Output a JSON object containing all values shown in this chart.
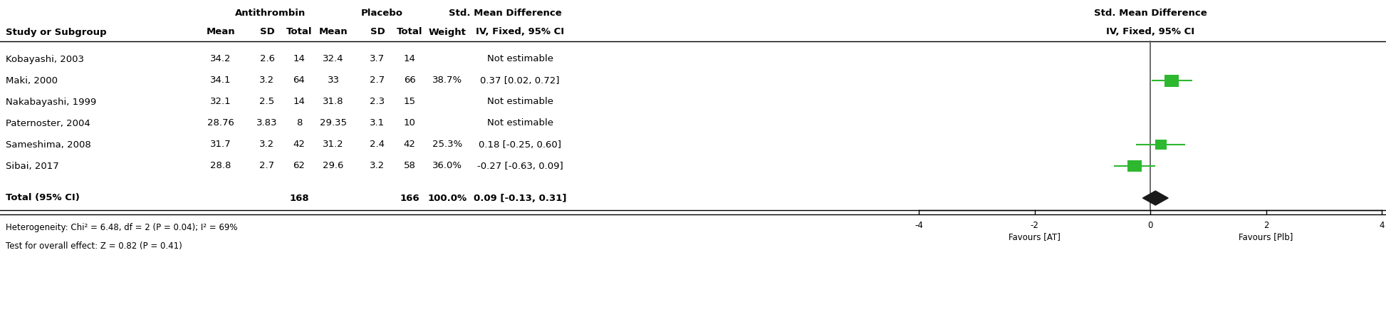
{
  "studies": [
    {
      "name": "Kobayashi, 2003",
      "mean1": "34.2",
      "sd1": "2.6",
      "n1": "14",
      "mean2": "32.4",
      "sd2": "3.7",
      "n2": "14",
      "weight": "",
      "ci_text": "Not estimable",
      "est": null,
      "ci_lo": null,
      "ci_hi": null
    },
    {
      "name": "Maki, 2000",
      "mean1": "34.1",
      "sd1": "3.2",
      "n1": "64",
      "mean2": "33",
      "sd2": "2.7",
      "n2": "66",
      "weight": "38.7%",
      "ci_text": "0.37 [0.02, 0.72]",
      "est": 0.37,
      "ci_lo": 0.02,
      "ci_hi": 0.72
    },
    {
      "name": "Nakabayashi, 1999",
      "mean1": "32.1",
      "sd1": "2.5",
      "n1": "14",
      "mean2": "31.8",
      "sd2": "2.3",
      "n2": "15",
      "weight": "",
      "ci_text": "Not estimable",
      "est": null,
      "ci_lo": null,
      "ci_hi": null
    },
    {
      "name": "Paternoster, 2004",
      "mean1": "28.76",
      "sd1": "3.83",
      "n1": "8",
      "mean2": "29.35",
      "sd2": "3.1",
      "n2": "10",
      "weight": "",
      "ci_text": "Not estimable",
      "est": null,
      "ci_lo": null,
      "ci_hi": null
    },
    {
      "name": "Sameshima, 2008",
      "mean1": "31.7",
      "sd1": "3.2",
      "n1": "42",
      "mean2": "31.2",
      "sd2": "2.4",
      "n2": "42",
      "weight": "25.3%",
      "ci_text": "0.18 [-0.25, 0.60]",
      "est": 0.18,
      "ci_lo": -0.25,
      "ci_hi": 0.6
    },
    {
      "name": "Sibai, 2017",
      "mean1": "28.8",
      "sd1": "2.7",
      "n1": "62",
      "mean2": "29.6",
      "sd2": "3.2",
      "n2": "58",
      "weight": "36.0%",
      "ci_text": "-0.27 [-0.63, 0.09]",
      "est": -0.27,
      "ci_lo": -0.63,
      "ci_hi": 0.09
    }
  ],
  "weights_numeric": [
    38.7,
    25.3,
    36.0
  ],
  "total_n1": "168",
  "total_n2": "166",
  "total_weight": "100.0%",
  "total_ci_text": "0.09 [-0.13, 0.31]",
  "total_est": 0.09,
  "total_ci_lo": -0.13,
  "total_ci_hi": 0.31,
  "heterogeneity": "Heterogeneity: Chi² = 6.48, df = 2 (P = 0.04); I² = 69%",
  "overall_effect": "Test for overall effect: Z = 0.82 (P = 0.41)",
  "forest_xlim": [
    -4,
    4
  ],
  "forest_xticks": [
    -4,
    -2,
    0,
    2,
    4
  ],
  "xlabel_left": "Favours [AT]",
  "xlabel_right": "Favours [Plb]",
  "green_color": "#2db830",
  "diamond_color": "#1a1a1a",
  "bg_color": "#ffffff",
  "font_size": 9.5,
  "font_size_small": 8.5,
  "font_family": "DejaVu Sans"
}
